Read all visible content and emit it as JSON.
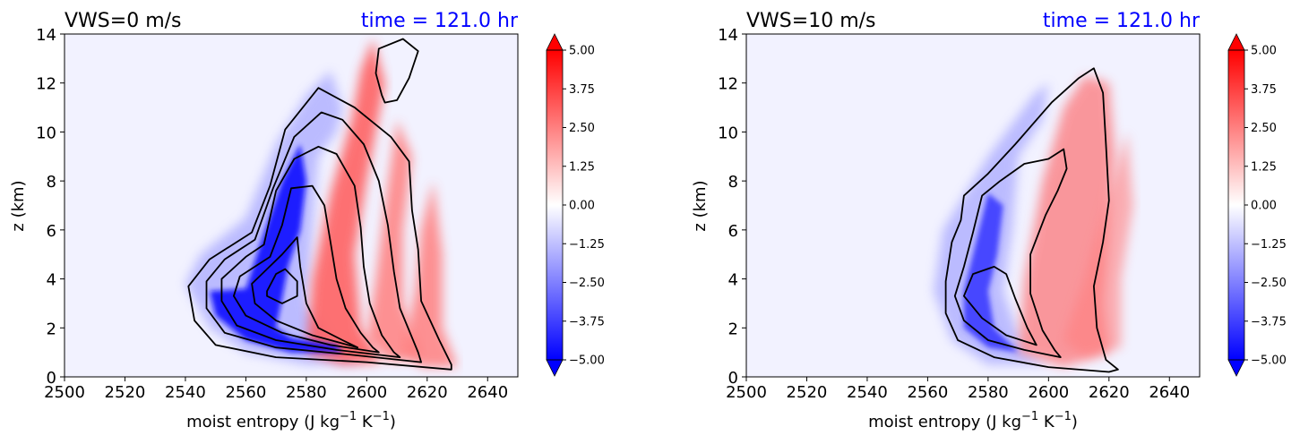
{
  "colors": {
    "neg_strong": "#0000ff",
    "pos_strong": "#ff0000",
    "neutral": "#f2f2ff",
    "contour": "#000000",
    "title_time": "#0000ff",
    "axis": "#000000"
  },
  "colorbar": {
    "ticks": [
      "5.00",
      "3.75",
      "2.50",
      "1.25",
      "0.00",
      "−1.25",
      "−2.50",
      "−3.75",
      "−5.00"
    ],
    "levels": [
      -5,
      -4.5,
      -4,
      -3.5,
      -3,
      -2.5,
      -2,
      -1.5,
      -1,
      -0.5,
      0,
      0.5,
      1,
      1.5,
      2,
      2.5,
      3,
      3.5,
      4,
      4.5,
      5
    ]
  },
  "chart_data": [
    {
      "type": "heatmap",
      "title": "VWS=0 m/s",
      "title_right": "time = 121.0 hr",
      "xlabel": "moist entropy (J kg",
      "xlabel_sup1": "−1",
      "xlabel_mid": " K",
      "xlabel_sup2": "−1",
      "xlabel_end": ")",
      "ylabel": "z (km)",
      "xlim": [
        2500,
        2650
      ],
      "ylim": [
        0,
        14
      ],
      "xticks": [
        "2500",
        "2520",
        "2540",
        "2560",
        "2580",
        "2600",
        "2620",
        "2640"
      ],
      "yticks": [
        "0",
        "2",
        "4",
        "6",
        "8",
        "10",
        "12",
        "14"
      ],
      "blue_lobe": [
        [
          2560,
          3.6
        ],
        [
          2565,
          5.5
        ],
        [
          2572,
          8.0
        ],
        [
          2578,
          9.5
        ],
        [
          2580,
          8.0
        ],
        [
          2578,
          6.0
        ],
        [
          2574,
          4.5
        ],
        [
          2572,
          3.2
        ],
        [
          2570,
          2.0
        ],
        [
          2575,
          1.6
        ],
        [
          2590,
          1.3
        ],
        [
          2592,
          1.0
        ],
        [
          2575,
          1.0
        ],
        [
          2560,
          1.5
        ],
        [
          2550,
          2.5
        ],
        [
          2548,
          3.5
        ]
      ],
      "blue_lobe_outer": [
        [
          2540,
          3.8
        ],
        [
          2545,
          5.0
        ],
        [
          2560,
          6.5
        ],
        [
          2570,
          9.5
        ],
        [
          2580,
          11.5
        ],
        [
          2588,
          12.5
        ],
        [
          2592,
          11.0
        ],
        [
          2590,
          10.0
        ],
        [
          2584,
          9.0
        ],
        [
          2582,
          6.0
        ],
        [
          2580,
          3.0
        ],
        [
          2590,
          1.0
        ],
        [
          2600,
          0.6
        ],
        [
          2580,
          0.5
        ],
        [
          2560,
          1.0
        ],
        [
          2548,
          2.0
        ]
      ],
      "red_bands": [
        [
          [
            2580,
            1.0
          ],
          [
            2582,
            4.0
          ],
          [
            2588,
            7.5
          ],
          [
            2595,
            10.5
          ],
          [
            2598,
            12.5
          ],
          [
            2602,
            13.8
          ],
          [
            2606,
            12.0
          ],
          [
            2600,
            8.0
          ],
          [
            2596,
            5.0
          ],
          [
            2598,
            2.0
          ],
          [
            2605,
            0.6
          ],
          [
            2592,
            0.5
          ]
        ],
        [
          [
            2600,
            1.5
          ],
          [
            2603,
            4.0
          ],
          [
            2606,
            7.0
          ],
          [
            2610,
            10.5
          ],
          [
            2615,
            9.0
          ],
          [
            2612,
            6.0
          ],
          [
            2612,
            3.0
          ],
          [
            2618,
            0.8
          ],
          [
            2608,
            0.6
          ]
        ],
        [
          [
            2612,
            1.0
          ],
          [
            2616,
            3.5
          ],
          [
            2618,
            6.0
          ],
          [
            2622,
            8.0
          ],
          [
            2625,
            5.0
          ],
          [
            2625,
            2.0
          ],
          [
            2630,
            0.4
          ],
          [
            2618,
            0.4
          ]
        ]
      ],
      "contours": [
        [
          [
            2628,
            0.3
          ],
          [
            2600,
            0.6
          ],
          [
            2570,
            0.8
          ],
          [
            2550,
            1.3
          ],
          [
            2543,
            2.3
          ],
          [
            2541,
            3.7
          ],
          [
            2548,
            4.8
          ],
          [
            2562,
            5.9
          ],
          [
            2568,
            7.8
          ],
          [
            2573,
            10.1
          ],
          [
            2584,
            11.8
          ],
          [
            2596,
            11.0
          ],
          [
            2608,
            9.8
          ],
          [
            2614,
            8.8
          ],
          [
            2615,
            6.8
          ],
          [
            2617,
            5.2
          ],
          [
            2618,
            3.1
          ],
          [
            2624,
            1.5
          ],
          [
            2628,
            0.5
          ]
        ],
        [
          [
            2618,
            0.6
          ],
          [
            2595,
            0.9
          ],
          [
            2570,
            1.2
          ],
          [
            2553,
            1.8
          ],
          [
            2547,
            2.8
          ],
          [
            2547,
            3.9
          ],
          [
            2553,
            4.8
          ],
          [
            2563,
            5.6
          ],
          [
            2569,
            7.7
          ],
          [
            2576,
            9.8
          ],
          [
            2585,
            10.8
          ],
          [
            2592,
            10.5
          ],
          [
            2599,
            9.5
          ],
          [
            2604,
            8.0
          ],
          [
            2607,
            6.2
          ],
          [
            2609,
            4.3
          ],
          [
            2611,
            2.8
          ],
          [
            2617,
            1.0
          ]
        ],
        [
          [
            2611,
            0.8
          ],
          [
            2590,
            1.1
          ],
          [
            2570,
            1.5
          ],
          [
            2557,
            2.1
          ],
          [
            2552,
            3.1
          ],
          [
            2552,
            4.0
          ],
          [
            2560,
            4.9
          ],
          [
            2566,
            5.4
          ],
          [
            2570,
            7.6
          ],
          [
            2576,
            8.9
          ],
          [
            2584,
            9.4
          ],
          [
            2590,
            9.1
          ],
          [
            2596,
            7.8
          ],
          [
            2598,
            6.1
          ],
          [
            2599,
            4.5
          ],
          [
            2601,
            3.0
          ],
          [
            2605,
            1.7
          ],
          [
            2609,
            1.0
          ]
        ],
        [
          [
            2604,
            1.0
          ],
          [
            2588,
            1.3
          ],
          [
            2572,
            1.8
          ],
          [
            2560,
            2.5
          ],
          [
            2556,
            3.3
          ],
          [
            2558,
            4.1
          ],
          [
            2568,
            4.9
          ],
          [
            2572,
            6.2
          ],
          [
            2575,
            7.7
          ],
          [
            2582,
            7.8
          ],
          [
            2586,
            7.0
          ],
          [
            2588,
            5.5
          ],
          [
            2590,
            4.0
          ],
          [
            2593,
            2.8
          ],
          [
            2598,
            1.8
          ],
          [
            2602,
            1.2
          ]
        ],
        [
          [
            2597,
            1.2
          ],
          [
            2582,
            1.7
          ],
          [
            2570,
            2.3
          ],
          [
            2563,
            3.0
          ],
          [
            2562,
            3.8
          ],
          [
            2567,
            4.4
          ],
          [
            2572,
            5.0
          ],
          [
            2577,
            5.7
          ],
          [
            2578,
            4.5
          ],
          [
            2580,
            3.0
          ],
          [
            2584,
            2.0
          ],
          [
            2592,
            1.5
          ]
        ],
        [
          [
            2567,
            3.5
          ],
          [
            2570,
            4.2
          ],
          [
            2573,
            4.4
          ],
          [
            2577,
            3.9
          ],
          [
            2577,
            3.3
          ],
          [
            2572,
            3.0
          ],
          [
            2567,
            3.3
          ]
        ],
        [
          [
            2605,
            11.5
          ],
          [
            2603,
            12.4
          ],
          [
            2604,
            13.4
          ],
          [
            2612,
            13.8
          ],
          [
            2617,
            13.3
          ],
          [
            2614,
            12.2
          ],
          [
            2610,
            11.3
          ],
          [
            2606,
            11.2
          ]
        ]
      ]
    },
    {
      "type": "heatmap",
      "title": "VWS=10 m/s",
      "title_right": "time = 121.0 hr",
      "xlabel": "moist entropy (J kg",
      "xlabel_sup1": "−1",
      "xlabel_mid": " K",
      "xlabel_sup2": "−1",
      "xlabel_end": ")",
      "ylabel": "z (km)",
      "xlim": [
        2500,
        2650
      ],
      "ylim": [
        0,
        14
      ],
      "xticks": [
        "2500",
        "2520",
        "2540",
        "2560",
        "2580",
        "2600",
        "2620",
        "2640"
      ],
      "yticks": [
        "0",
        "2",
        "4",
        "6",
        "8",
        "10",
        "12",
        "14"
      ],
      "blue_lobe": [
        [
          2572,
          3.5
        ],
        [
          2575,
          5.0
        ],
        [
          2580,
          7.5
        ],
        [
          2585,
          7.0
        ],
        [
          2583,
          5.0
        ],
        [
          2580,
          3.5
        ],
        [
          2582,
          2.0
        ],
        [
          2590,
          1.0
        ],
        [
          2580,
          1.2
        ],
        [
          2572,
          2.0
        ]
      ],
      "blue_lobe_outer": [
        [
          2562,
          3.5
        ],
        [
          2565,
          6.0
        ],
        [
          2580,
          9.0
        ],
        [
          2595,
          11.5
        ],
        [
          2600,
          12.0
        ],
        [
          2598,
          10.5
        ],
        [
          2590,
          9.0
        ],
        [
          2588,
          6.0
        ],
        [
          2585,
          3.5
        ],
        [
          2592,
          1.0
        ],
        [
          2600,
          0.5
        ],
        [
          2580,
          0.5
        ],
        [
          2568,
          1.5
        ]
      ],
      "red_bands": [
        [
          [
            2590,
            1.0
          ],
          [
            2592,
            4.0
          ],
          [
            2598,
            8.0
          ],
          [
            2605,
            11.0
          ],
          [
            2612,
            12.3
          ],
          [
            2620,
            12.0
          ],
          [
            2622,
            9.0
          ],
          [
            2620,
            6.0
          ],
          [
            2618,
            3.0
          ],
          [
            2620,
            1.0
          ],
          [
            2605,
            0.4
          ]
        ],
        [
          [
            2605,
            1.5
          ],
          [
            2612,
            4.0
          ],
          [
            2620,
            7.5
          ],
          [
            2626,
            10.0
          ],
          [
            2628,
            7.0
          ],
          [
            2624,
            4.0
          ],
          [
            2624,
            1.2
          ],
          [
            2612,
            0.8
          ]
        ]
      ],
      "contours": [
        [
          [
            2620,
            0.2
          ],
          [
            2600,
            0.4
          ],
          [
            2582,
            0.8
          ],
          [
            2570,
            1.5
          ],
          [
            2566,
            2.6
          ],
          [
            2566,
            3.9
          ],
          [
            2568,
            5.5
          ],
          [
            2571,
            6.4
          ],
          [
            2572,
            7.4
          ],
          [
            2580,
            8.3
          ],
          [
            2589,
            9.5
          ],
          [
            2601,
            11.2
          ],
          [
            2610,
            12.2
          ],
          [
            2615,
            12.6
          ],
          [
            2618,
            11.6
          ],
          [
            2619,
            9.5
          ],
          [
            2620,
            7.2
          ],
          [
            2618,
            5.5
          ],
          [
            2615,
            3.7
          ],
          [
            2616,
            2.0
          ],
          [
            2619,
            0.7
          ],
          [
            2623,
            0.3
          ]
        ],
        [
          [
            2604,
            0.8
          ],
          [
            2592,
            1.1
          ],
          [
            2580,
            1.5
          ],
          [
            2572,
            2.3
          ],
          [
            2569,
            3.3
          ],
          [
            2572,
            4.5
          ],
          [
            2575,
            5.9
          ],
          [
            2578,
            7.4
          ],
          [
            2584,
            8.0
          ],
          [
            2592,
            8.7
          ],
          [
            2600,
            8.9
          ],
          [
            2605,
            9.3
          ],
          [
            2606,
            8.5
          ],
          [
            2603,
            7.6
          ],
          [
            2599,
            6.6
          ],
          [
            2594,
            5.0
          ],
          [
            2594,
            3.4
          ],
          [
            2598,
            1.9
          ],
          [
            2602,
            1.1
          ]
        ],
        [
          [
            2596,
            1.3
          ],
          [
            2586,
            1.7
          ],
          [
            2578,
            2.4
          ],
          [
            2572,
            3.3
          ],
          [
            2575,
            4.2
          ],
          [
            2582,
            4.5
          ],
          [
            2586,
            4.2
          ],
          [
            2589,
            3.2
          ],
          [
            2593,
            2.0
          ]
        ]
      ]
    }
  ]
}
